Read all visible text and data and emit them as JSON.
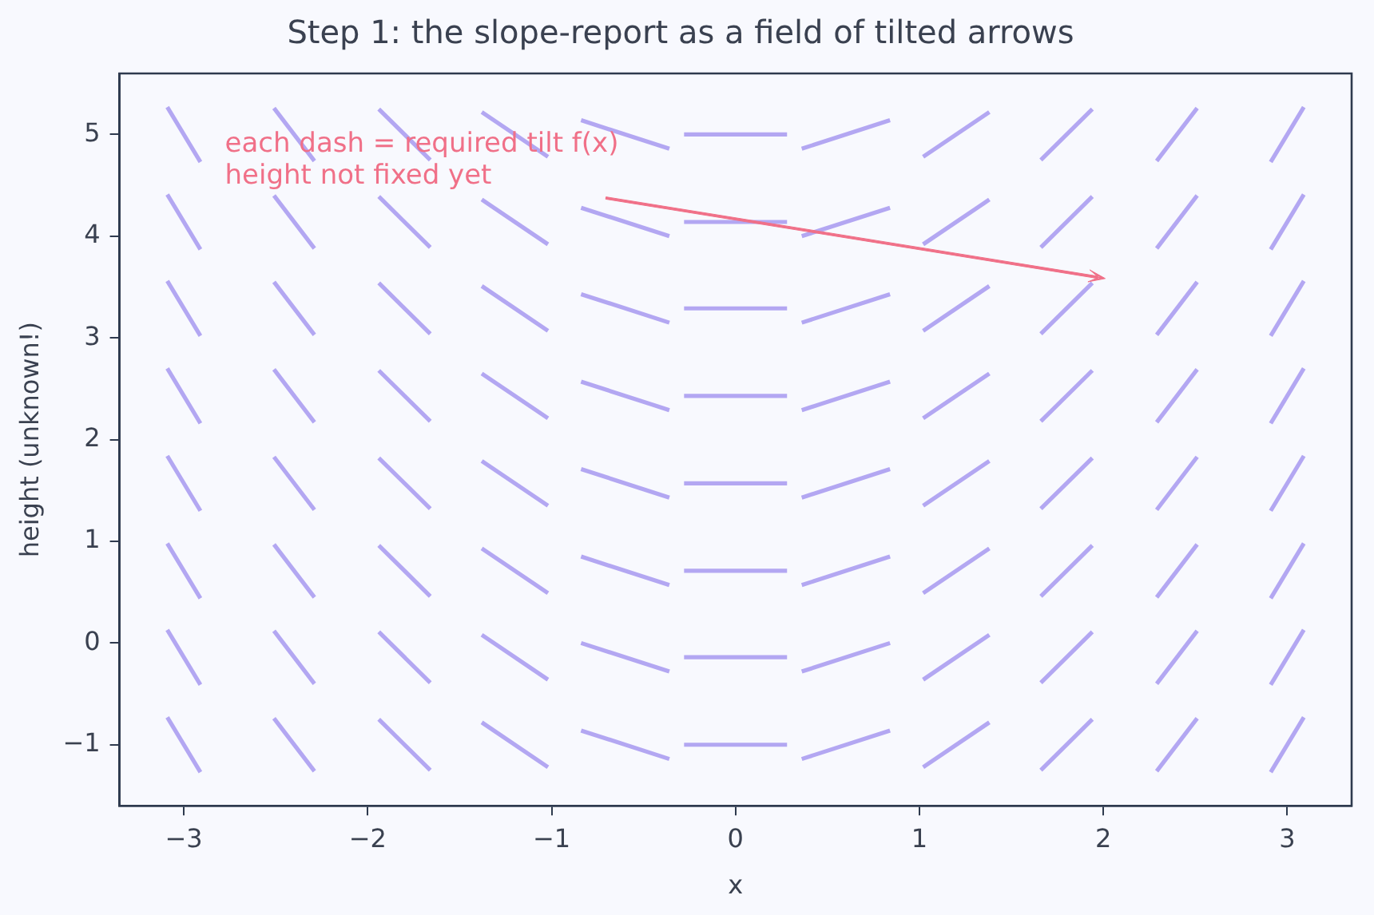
{
  "chart_data": {
    "type": "line",
    "title": "Step 1: the slope-report as a field of tilted arrows",
    "xlabel": "x",
    "ylabel": "height (unknown!)",
    "xlim": [
      -3.35,
      3.35
    ],
    "ylim": [
      -1.6,
      5.6
    ],
    "xticks": [
      -3,
      -2,
      -1,
      0,
      1,
      2,
      3
    ],
    "yticks": [
      -1,
      0,
      1,
      2,
      3,
      4,
      5
    ],
    "grid": false,
    "legend": false,
    "marker": "none",
    "line_style": "solid",
    "annotations": [
      "each dash = required tilt f(x)\nheight not fixed yet"
    ],
    "series": [
      {
        "color": "#b3a7f2",
        "x": [
          -3.09,
          -2.91
        ],
        "values": [
          -0.73,
          -1.27
        ]
      },
      {
        "color": "#b3a7f2",
        "x": [
          -3.09,
          -2.91
        ],
        "values": [
          0.13,
          -0.41
        ]
      },
      {
        "color": "#b3a7f2",
        "x": [
          -3.09,
          -2.91
        ],
        "values": [
          0.98,
          0.44
        ]
      },
      {
        "color": "#b3a7f2",
        "x": [
          -3.09,
          -2.91
        ],
        "values": [
          1.84,
          1.3
        ]
      },
      {
        "color": "#b3a7f2",
        "x": [
          -3.09,
          -2.91
        ],
        "values": [
          2.7,
          2.16
        ]
      },
      {
        "color": "#b3a7f2",
        "x": [
          -3.09,
          -2.91
        ],
        "values": [
          3.56,
          3.02
        ]
      },
      {
        "color": "#b3a7f2",
        "x": [
          -3.09,
          -2.91
        ],
        "values": [
          4.41,
          3.87
        ]
      },
      {
        "color": "#b3a7f2",
        "x": [
          -3.09,
          -2.91
        ],
        "values": [
          5.27,
          4.73
        ]
      },
      {
        "color": "#b3a7f2",
        "x": [
          -2.51,
          -2.29
        ],
        "values": [
          -0.74,
          -1.26
        ]
      },
      {
        "color": "#b3a7f2",
        "x": [
          -2.51,
          -2.29
        ],
        "values": [
          0.12,
          -0.4
        ]
      },
      {
        "color": "#b3a7f2",
        "x": [
          -2.51,
          -2.29
        ],
        "values": [
          0.97,
          0.45
        ]
      },
      {
        "color": "#b3a7f2",
        "x": [
          -2.51,
          -2.29
        ],
        "values": [
          1.83,
          1.31
        ]
      },
      {
        "color": "#b3a7f2",
        "x": [
          -2.51,
          -2.29
        ],
        "values": [
          2.69,
          2.17
        ]
      },
      {
        "color": "#b3a7f2",
        "x": [
          -2.51,
          -2.29
        ],
        "values": [
          3.55,
          3.03
        ]
      },
      {
        "color": "#b3a7f2",
        "x": [
          -2.51,
          -2.29
        ],
        "values": [
          4.4,
          3.88
        ]
      },
      {
        "color": "#b3a7f2",
        "x": [
          -2.51,
          -2.29
        ],
        "values": [
          5.26,
          4.74
        ]
      },
      {
        "color": "#b3a7f2",
        "x": [
          -1.94,
          -1.66
        ],
        "values": [
          -0.75,
          -1.25
        ]
      },
      {
        "color": "#b3a7f2",
        "x": [
          -1.94,
          -1.66
        ],
        "values": [
          0.11,
          -0.39
        ]
      },
      {
        "color": "#b3a7f2",
        "x": [
          -1.94,
          -1.66
        ],
        "values": [
          0.96,
          0.46
        ]
      },
      {
        "color": "#b3a7f2",
        "x": [
          -1.94,
          -1.66
        ],
        "values": [
          1.82,
          1.32
        ]
      },
      {
        "color": "#b3a7f2",
        "x": [
          -1.94,
          -1.66
        ],
        "values": [
          2.68,
          2.18
        ]
      },
      {
        "color": "#b3a7f2",
        "x": [
          -1.94,
          -1.66
        ],
        "values": [
          3.54,
          3.04
        ]
      },
      {
        "color": "#b3a7f2",
        "x": [
          -1.94,
          -1.66
        ],
        "values": [
          4.39,
          3.89
        ]
      },
      {
        "color": "#b3a7f2",
        "x": [
          -1.94,
          -1.66
        ],
        "values": [
          5.25,
          4.75
        ]
      },
      {
        "color": "#b3a7f2",
        "x": [
          -1.38,
          -1.02
        ],
        "values": [
          -0.78,
          -1.22
        ]
      },
      {
        "color": "#b3a7f2",
        "x": [
          -1.38,
          -1.02
        ],
        "values": [
          0.08,
          -0.36
        ]
      },
      {
        "color": "#b3a7f2",
        "x": [
          -1.38,
          -1.02
        ],
        "values": [
          0.93,
          0.49
        ]
      },
      {
        "color": "#b3a7f2",
        "x": [
          -1.38,
          -1.02
        ],
        "values": [
          1.79,
          1.35
        ]
      },
      {
        "color": "#b3a7f2",
        "x": [
          -1.38,
          -1.02
        ],
        "values": [
          2.65,
          2.21
        ]
      },
      {
        "color": "#b3a7f2",
        "x": [
          -1.38,
          -1.02
        ],
        "values": [
          3.51,
          3.07
        ]
      },
      {
        "color": "#b3a7f2",
        "x": [
          -1.38,
          -1.02
        ],
        "values": [
          4.36,
          3.92
        ]
      },
      {
        "color": "#b3a7f2",
        "x": [
          -1.38,
          -1.02
        ],
        "values": [
          5.22,
          4.78
        ]
      },
      {
        "color": "#b3a7f2",
        "x": [
          -0.84,
          -0.36
        ],
        "values": [
          -0.86,
          -1.14
        ]
      },
      {
        "color": "#b3a7f2",
        "x": [
          -0.84,
          -0.36
        ],
        "values": [
          0.0,
          -0.28
        ]
      },
      {
        "color": "#b3a7f2",
        "x": [
          -0.84,
          -0.36
        ],
        "values": [
          0.85,
          0.57
        ]
      },
      {
        "color": "#b3a7f2",
        "x": [
          -0.84,
          -0.36
        ],
        "values": [
          1.71,
          1.43
        ]
      },
      {
        "color": "#b3a7f2",
        "x": [
          -0.84,
          -0.36
        ],
        "values": [
          2.57,
          2.29
        ]
      },
      {
        "color": "#b3a7f2",
        "x": [
          -0.84,
          -0.36
        ],
        "values": [
          3.43,
          3.15
        ]
      },
      {
        "color": "#b3a7f2",
        "x": [
          -0.84,
          -0.36
        ],
        "values": [
          4.28,
          4.0
        ]
      },
      {
        "color": "#b3a7f2",
        "x": [
          -0.84,
          -0.36
        ],
        "values": [
          5.14,
          4.86
        ]
      },
      {
        "color": "#b3a7f2",
        "x": [
          -0.28,
          0.28
        ],
        "values": [
          -1,
          -1
        ]
      },
      {
        "color": "#b3a7f2",
        "x": [
          -0.28,
          0.28
        ],
        "values": [
          -0.14,
          -0.14
        ]
      },
      {
        "color": "#b3a7f2",
        "x": [
          -0.28,
          0.28
        ],
        "values": [
          0.71,
          0.71
        ]
      },
      {
        "color": "#b3a7f2",
        "x": [
          -0.28,
          0.28
        ],
        "values": [
          1.57,
          1.57
        ]
      },
      {
        "color": "#b3a7f2",
        "x": [
          -0.28,
          0.28
        ],
        "values": [
          2.43,
          2.43
        ]
      },
      {
        "color": "#b3a7f2",
        "x": [
          -0.28,
          0.28
        ],
        "values": [
          3.29,
          3.29
        ]
      },
      {
        "color": "#b3a7f2",
        "x": [
          -0.28,
          0.28
        ],
        "values": [
          4.14,
          4.14
        ]
      },
      {
        "color": "#b3a7f2",
        "x": [
          -0.28,
          0.28
        ],
        "values": [
          5,
          5
        ]
      },
      {
        "color": "#b3a7f2",
        "x": [
          0.36,
          0.84
        ],
        "values": [
          -1.14,
          -0.86
        ]
      },
      {
        "color": "#b3a7f2",
        "x": [
          0.36,
          0.84
        ],
        "values": [
          -0.28,
          0.0
        ]
      },
      {
        "color": "#b3a7f2",
        "x": [
          0.36,
          0.84
        ],
        "values": [
          0.57,
          0.85
        ]
      },
      {
        "color": "#b3a7f2",
        "x": [
          0.36,
          0.84
        ],
        "values": [
          1.43,
          1.71
        ]
      },
      {
        "color": "#b3a7f2",
        "x": [
          0.36,
          0.84
        ],
        "values": [
          2.29,
          2.57
        ]
      },
      {
        "color": "#b3a7f2",
        "x": [
          0.36,
          0.84
        ],
        "values": [
          3.15,
          3.43
        ]
      },
      {
        "color": "#b3a7f2",
        "x": [
          0.36,
          0.84
        ],
        "values": [
          4.0,
          4.28
        ]
      },
      {
        "color": "#b3a7f2",
        "x": [
          0.36,
          0.84
        ],
        "values": [
          4.86,
          5.14
        ]
      },
      {
        "color": "#b3a7f2",
        "x": [
          1.02,
          1.38
        ],
        "values": [
          -1.22,
          -0.78
        ]
      },
      {
        "color": "#b3a7f2",
        "x": [
          1.02,
          1.38
        ],
        "values": [
          -0.36,
          0.08
        ]
      },
      {
        "color": "#b3a7f2",
        "x": [
          1.02,
          1.38
        ],
        "values": [
          0.49,
          0.93
        ]
      },
      {
        "color": "#b3a7f2",
        "x": [
          1.02,
          1.38
        ],
        "values": [
          1.35,
          1.79
        ]
      },
      {
        "color": "#b3a7f2",
        "x": [
          1.02,
          1.38
        ],
        "values": [
          2.21,
          2.65
        ]
      },
      {
        "color": "#b3a7f2",
        "x": [
          1.02,
          1.38
        ],
        "values": [
          3.07,
          3.51
        ]
      },
      {
        "color": "#b3a7f2",
        "x": [
          1.02,
          1.38
        ],
        "values": [
          3.92,
          4.36
        ]
      },
      {
        "color": "#b3a7f2",
        "x": [
          1.02,
          1.38
        ],
        "values": [
          4.78,
          5.22
        ]
      },
      {
        "color": "#b3a7f2",
        "x": [
          1.66,
          1.94
        ],
        "values": [
          -1.25,
          -0.75
        ]
      },
      {
        "color": "#b3a7f2",
        "x": [
          1.66,
          1.94
        ],
        "values": [
          -0.39,
          0.11
        ]
      },
      {
        "color": "#b3a7f2",
        "x": [
          1.66,
          1.94
        ],
        "values": [
          0.46,
          0.96
        ]
      },
      {
        "color": "#b3a7f2",
        "x": [
          1.66,
          1.94
        ],
        "values": [
          1.32,
          1.82
        ]
      },
      {
        "color": "#b3a7f2",
        "x": [
          1.66,
          1.94
        ],
        "values": [
          2.18,
          2.68
        ]
      },
      {
        "color": "#b3a7f2",
        "x": [
          1.66,
          1.94
        ],
        "values": [
          3.04,
          3.54
        ]
      },
      {
        "color": "#b3a7f2",
        "x": [
          1.66,
          1.94
        ],
        "values": [
          3.89,
          4.39
        ]
      },
      {
        "color": "#b3a7f2",
        "x": [
          1.66,
          1.94
        ],
        "values": [
          4.75,
          5.25
        ]
      },
      {
        "color": "#b3a7f2",
        "x": [
          2.29,
          2.51
        ],
        "values": [
          -1.26,
          -0.74
        ]
      },
      {
        "color": "#b3a7f2",
        "x": [
          2.29,
          2.51
        ],
        "values": [
          -0.4,
          0.12
        ]
      },
      {
        "color": "#b3a7f2",
        "x": [
          2.29,
          2.51
        ],
        "values": [
          0.45,
          0.97
        ]
      },
      {
        "color": "#b3a7f2",
        "x": [
          2.29,
          2.51
        ],
        "values": [
          1.31,
          1.83
        ]
      },
      {
        "color": "#b3a7f2",
        "x": [
          2.29,
          2.51
        ],
        "values": [
          2.17,
          2.69
        ]
      },
      {
        "color": "#b3a7f2",
        "x": [
          2.29,
          2.51
        ],
        "values": [
          3.03,
          3.55
        ]
      },
      {
        "color": "#b3a7f2",
        "x": [
          2.29,
          2.51
        ],
        "values": [
          3.88,
          4.4
        ]
      },
      {
        "color": "#b3a7f2",
        "x": [
          2.29,
          2.51
        ],
        "values": [
          4.74,
          5.26
        ]
      },
      {
        "color": "#b3a7f2",
        "x": [
          2.91,
          3.09
        ],
        "values": [
          -1.27,
          -0.73
        ]
      },
      {
        "color": "#b3a7f2",
        "x": [
          2.91,
          3.09
        ],
        "values": [
          -0.41,
          0.13
        ]
      },
      {
        "color": "#b3a7f2",
        "x": [
          2.91,
          3.09
        ],
        "values": [
          0.44,
          0.98
        ]
      },
      {
        "color": "#b3a7f2",
        "x": [
          2.91,
          3.09
        ],
        "values": [
          1.3,
          1.84
        ]
      },
      {
        "color": "#b3a7f2",
        "x": [
          2.91,
          3.09
        ],
        "values": [
          2.16,
          2.7
        ]
      },
      {
        "color": "#b3a7f2",
        "x": [
          2.91,
          3.09
        ],
        "values": [
          3.02,
          3.56
        ]
      },
      {
        "color": "#b3a7f2",
        "x": [
          2.91,
          3.09
        ],
        "values": [
          3.87,
          4.41
        ]
      },
      {
        "color": "#b3a7f2",
        "x": [
          2.91,
          3.09
        ],
        "values": [
          4.73,
          5.27
        ]
      }
    ]
  }
}
